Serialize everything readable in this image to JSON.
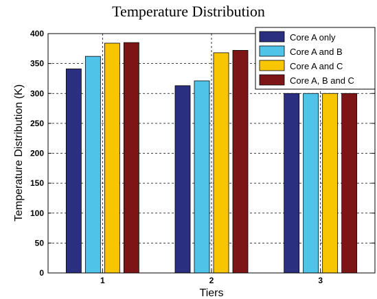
{
  "chart_data": {
    "type": "bar",
    "title": "Temperature Distribution",
    "xlabel": "Tiers",
    "ylabel": "Temperature Distribution (K)",
    "categories": [
      "1",
      "2",
      "3"
    ],
    "ylim": [
      0,
      400
    ],
    "yticks": [
      0,
      50,
      100,
      150,
      200,
      250,
      300,
      350,
      400
    ],
    "grid": true,
    "legend_position": "top-right",
    "series": [
      {
        "name": "Core A only",
        "color": "#2b2f7f",
        "values": [
          341,
          313,
          300
        ]
      },
      {
        "name": "Core A and B",
        "color": "#4fc3e8",
        "values": [
          362,
          321,
          300
        ]
      },
      {
        "name": "Core A and C",
        "color": "#f7c600",
        "values": [
          384,
          368,
          300
        ]
      },
      {
        "name": "Core A, B and C",
        "color": "#7d1516",
        "values": [
          385,
          372,
          300
        ]
      }
    ]
  }
}
